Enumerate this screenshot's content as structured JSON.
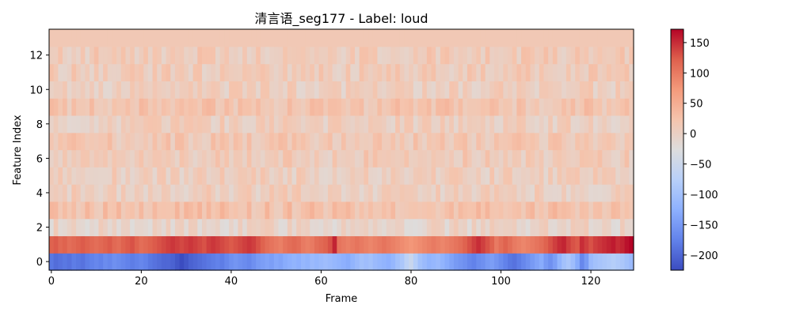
{
  "chart_data": {
    "type": "heatmap",
    "title": "清言语_seg177 - Label: loud",
    "xlabel": "Frame",
    "ylabel": "Feature Index",
    "n_frames": 130,
    "n_features": 14,
    "xlim": [
      -0.5,
      129.5
    ],
    "ylim": [
      -0.5,
      13.5
    ],
    "x_ticks": [
      0,
      20,
      40,
      60,
      80,
      100,
      120
    ],
    "y_ticks": [
      0,
      2,
      4,
      6,
      8,
      10,
      12
    ],
    "colormap": "coolwarm",
    "colorbar": {
      "vmin": -225,
      "vmax": 172,
      "ticks": [
        -200,
        -150,
        -100,
        -50,
        0,
        50,
        100,
        150
      ]
    },
    "feature_means": [
      -160,
      120,
      -5,
      25,
      5,
      5,
      10,
      15,
      5,
      20,
      5,
      10,
      10,
      15
    ],
    "row0_profile": [
      -185,
      -195,
      -190,
      -185,
      -190,
      -180,
      -185,
      -190,
      -180,
      -175,
      -170,
      -175,
      -165,
      -170,
      -160,
      -165,
      -170,
      -175,
      -180,
      -175,
      -170,
      -175,
      -185,
      -190,
      -195,
      -200,
      -200,
      -205,
      -215,
      -225,
      -215,
      -205,
      -200,
      -195,
      -190,
      -185,
      -180,
      -175,
      -180,
      -170,
      -160,
      -155,
      -160,
      -165,
      -170,
      -160,
      -150,
      -145,
      -140,
      -145,
      -135,
      -140,
      -130,
      -125,
      -120,
      -125,
      -115,
      -120,
      -110,
      -115,
      -110,
      -105,
      -110,
      -115,
      -120,
      -125,
      -130,
      -120,
      -110,
      -100,
      -105,
      -100,
      -110,
      -115,
      -120,
      -125,
      -115,
      -100,
      -90,
      -70,
      -55,
      -80,
      -100,
      -110,
      -120,
      -115,
      -110,
      -120,
      -130,
      -140,
      -150,
      -155,
      -160,
      -170,
      -175,
      -165,
      -160,
      -150,
      -145,
      -155,
      -165,
      -175,
      -185,
      -190,
      -180,
      -170,
      -160,
      -150,
      -140,
      -130,
      -150,
      -160,
      -145,
      -120,
      -100,
      -90,
      -105,
      -130,
      -170,
      -150,
      -110,
      -100,
      -95,
      -90,
      -85,
      -80,
      -85,
      -90,
      -100,
      -110
    ],
    "row1_profile": [
      120,
      125,
      115,
      120,
      110,
      115,
      120,
      125,
      120,
      115,
      110,
      115,
      120,
      125,
      115,
      110,
      120,
      125,
      130,
      120,
      110,
      115,
      120,
      125,
      130,
      135,
      140,
      145,
      140,
      135,
      140,
      145,
      140,
      135,
      130,
      140,
      145,
      140,
      135,
      130,
      125,
      130,
      135,
      140,
      145,
      140,
      130,
      120,
      110,
      105,
      100,
      95,
      105,
      110,
      115,
      110,
      100,
      95,
      100,
      110,
      115,
      120,
      130,
      155,
      105,
      100,
      95,
      100,
      105,
      100,
      95,
      90,
      95,
      100,
      105,
      100,
      95,
      90,
      85,
      80,
      75,
      80,
      85,
      90,
      95,
      100,
      95,
      90,
      95,
      100,
      105,
      110,
      120,
      130,
      140,
      150,
      140,
      130,
      120,
      100,
      110,
      120,
      110,
      100,
      95,
      90,
      95,
      100,
      105,
      110,
      120,
      130,
      140,
      150,
      155,
      140,
      130,
      125,
      150,
      140,
      130,
      140,
      145,
      150,
      155,
      160,
      150,
      155,
      165,
      172
    ]
  }
}
